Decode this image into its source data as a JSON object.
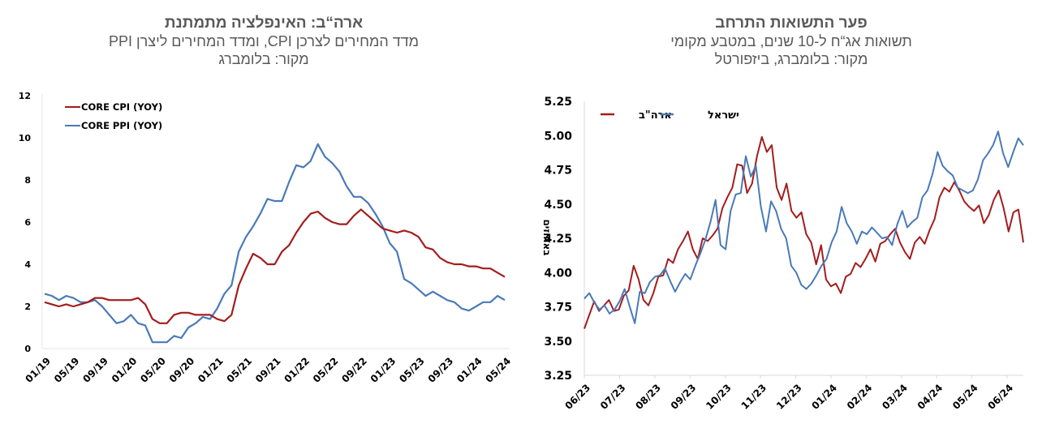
{
  "colors": {
    "red": "#a31d1d",
    "blue": "#4a7ab8",
    "axis": "#d9d9d9",
    "text": "#595959"
  },
  "chart_data": [
    {
      "type": "line",
      "title": "ארה“ב: האינפלציה מתמתנת",
      "subtitle": "מדד המחירים לצרכן CPI, ומדד המחירים ליצרן PPI",
      "source": "מקור: בלומברג",
      "xlabel": "",
      "ylabel": "",
      "ylim": [
        0,
        12
      ],
      "yticks": [
        "0",
        "2",
        "4",
        "6",
        "8",
        "10",
        "12"
      ],
      "xticks": [
        "01/19",
        "05/19",
        "09/19",
        "01/20",
        "05/20",
        "09/20",
        "01/21",
        "05/21",
        "09/21",
        "01/22",
        "05/22",
        "09/22",
        "01/23",
        "05/23",
        "09/23",
        "01/24",
        "05/24"
      ],
      "x": [
        "01/19",
        "02/19",
        "03/19",
        "04/19",
        "05/19",
        "06/19",
        "07/19",
        "08/19",
        "09/19",
        "10/19",
        "11/19",
        "12/19",
        "01/20",
        "02/20",
        "03/20",
        "04/20",
        "05/20",
        "06/20",
        "07/20",
        "08/20",
        "09/20",
        "10/20",
        "11/20",
        "12/20",
        "01/21",
        "02/21",
        "03/21",
        "04/21",
        "05/21",
        "06/21",
        "07/21",
        "08/21",
        "09/21",
        "10/21",
        "11/21",
        "12/21",
        "01/22",
        "02/22",
        "03/22",
        "04/22",
        "05/22",
        "06/22",
        "07/22",
        "08/22",
        "09/22",
        "10/22",
        "11/22",
        "12/22",
        "01/23",
        "02/23",
        "03/23",
        "04/23",
        "05/23",
        "06/23",
        "07/23",
        "08/23",
        "09/23",
        "10/23",
        "11/23",
        "12/23",
        "01/24",
        "02/24",
        "03/24",
        "04/24",
        "05/24"
      ],
      "grid": false,
      "legend_position": "top-left",
      "series": [
        {
          "name": "CORE CPI (YOY)",
          "color": "#a31d1d",
          "values": [
            2.2,
            2.1,
            2.0,
            2.1,
            2.0,
            2.1,
            2.2,
            2.4,
            2.4,
            2.3,
            2.3,
            2.3,
            2.3,
            2.4,
            2.1,
            1.4,
            1.2,
            1.2,
            1.6,
            1.7,
            1.7,
            1.6,
            1.6,
            1.6,
            1.4,
            1.3,
            1.6,
            3.0,
            3.8,
            4.5,
            4.3,
            4.0,
            4.0,
            4.6,
            4.9,
            5.5,
            6.0,
            6.4,
            6.5,
            6.2,
            6.0,
            5.9,
            5.9,
            6.3,
            6.6,
            6.3,
            6.0,
            5.7,
            5.6,
            5.5,
            5.6,
            5.5,
            5.3,
            4.8,
            4.7,
            4.3,
            4.1,
            4.0,
            4.0,
            3.9,
            3.9,
            3.8,
            3.8,
            3.6,
            3.4
          ]
        },
        {
          "name": "CORE PPI (YOY)",
          "color": "#4a7ab8",
          "values": [
            2.6,
            2.5,
            2.3,
            2.5,
            2.4,
            2.2,
            2.2,
            2.3,
            2.0,
            1.6,
            1.2,
            1.3,
            1.6,
            1.2,
            1.1,
            0.3,
            0.3,
            0.3,
            0.6,
            0.5,
            1.0,
            1.2,
            1.5,
            1.4,
            1.9,
            2.6,
            3.0,
            4.6,
            5.3,
            5.8,
            6.4,
            7.1,
            7.0,
            7.0,
            7.9,
            8.7,
            8.6,
            8.9,
            9.7,
            9.1,
            8.8,
            8.4,
            7.7,
            7.2,
            7.2,
            6.9,
            6.4,
            5.8,
            5.0,
            4.6,
            3.3,
            3.1,
            2.8,
            2.5,
            2.7,
            2.5,
            2.3,
            2.2,
            1.9,
            1.8,
            2.0,
            2.2,
            2.2,
            2.5,
            2.3
          ]
        }
      ]
    },
    {
      "type": "line",
      "title": "פער התשואות התרחב",
      "subtitle": "תשואות אג“ח ל-10 שנים, במטבע מקומי",
      "source": "מקור: בלומברג, ביזפורטל",
      "xlabel": "",
      "ylabel": "באחוזים",
      "ylim": [
        3.25,
        5.25
      ],
      "yticks": [
        "3.25",
        "3.50",
        "3.75",
        "4.00",
        "4.25",
        "4.50",
        "4.75",
        "5.00",
        "5.25"
      ],
      "xticks": [
        "06/23",
        "07/23",
        "08/23",
        "09/23",
        "10/23",
        "11/23",
        "12/23",
        "01/24",
        "02/24",
        "03/24",
        "04/24",
        "05/24",
        "06/24"
      ],
      "x_start": "06/23",
      "x_step": "weekly",
      "grid": false,
      "legend_position": "top-left",
      "series": [
        {
          "name": "ארה\"ב",
          "color": "#a31d1d",
          "values": [
            3.59,
            3.69,
            3.79,
            3.72,
            3.76,
            3.8,
            3.72,
            3.73,
            3.83,
            3.87,
            4.05,
            3.95,
            3.8,
            3.76,
            3.85,
            3.97,
            3.98,
            4.1,
            4.07,
            4.17,
            4.23,
            4.3,
            4.17,
            4.1,
            4.25,
            4.23,
            4.27,
            4.32,
            4.47,
            4.55,
            4.62,
            4.79,
            4.78,
            4.58,
            4.65,
            4.85,
            4.99,
            4.88,
            4.93,
            4.62,
            4.53,
            4.65,
            4.45,
            4.4,
            4.44,
            4.28,
            4.22,
            4.06,
            4.2,
            3.95,
            3.9,
            3.92,
            3.85,
            3.97,
            3.99,
            4.07,
            4.04,
            4.1,
            4.17,
            4.08,
            4.21,
            4.23,
            4.28,
            4.32,
            4.22,
            4.15,
            4.1,
            4.22,
            4.26,
            4.21,
            4.31,
            4.39,
            4.55,
            4.62,
            4.59,
            4.66,
            4.6,
            4.52,
            4.48,
            4.45,
            4.49,
            4.36,
            4.42,
            4.53,
            4.6,
            4.47,
            4.3,
            4.44,
            4.46,
            4.22
          ]
        },
        {
          "name": "ישראל",
          "color": "#4a7ab8",
          "values": [
            3.81,
            3.85,
            3.78,
            3.73,
            3.76,
            3.7,
            3.73,
            3.79,
            3.88,
            3.75,
            3.63,
            3.86,
            3.85,
            3.93,
            3.97,
            3.98,
            4.03,
            3.94,
            3.86,
            3.93,
            3.99,
            3.95,
            4.05,
            4.14,
            4.24,
            4.37,
            4.53,
            4.2,
            4.17,
            4.45,
            4.57,
            4.58,
            4.85,
            4.7,
            4.78,
            4.48,
            4.3,
            4.52,
            4.45,
            4.32,
            4.25,
            4.05,
            4.0,
            3.91,
            3.88,
            3.92,
            3.98,
            4.05,
            4.1,
            4.22,
            4.3,
            4.48,
            4.36,
            4.3,
            4.21,
            4.3,
            4.28,
            4.33,
            4.29,
            4.25,
            4.26,
            4.2,
            4.35,
            4.45,
            4.33,
            4.37,
            4.4,
            4.55,
            4.6,
            4.72,
            4.88,
            4.78,
            4.74,
            4.71,
            4.62,
            4.6,
            4.58,
            4.6,
            4.68,
            4.82,
            4.87,
            4.93,
            5.03,
            4.87,
            4.77,
            4.88,
            4.98,
            4.93
          ]
        }
      ]
    }
  ]
}
